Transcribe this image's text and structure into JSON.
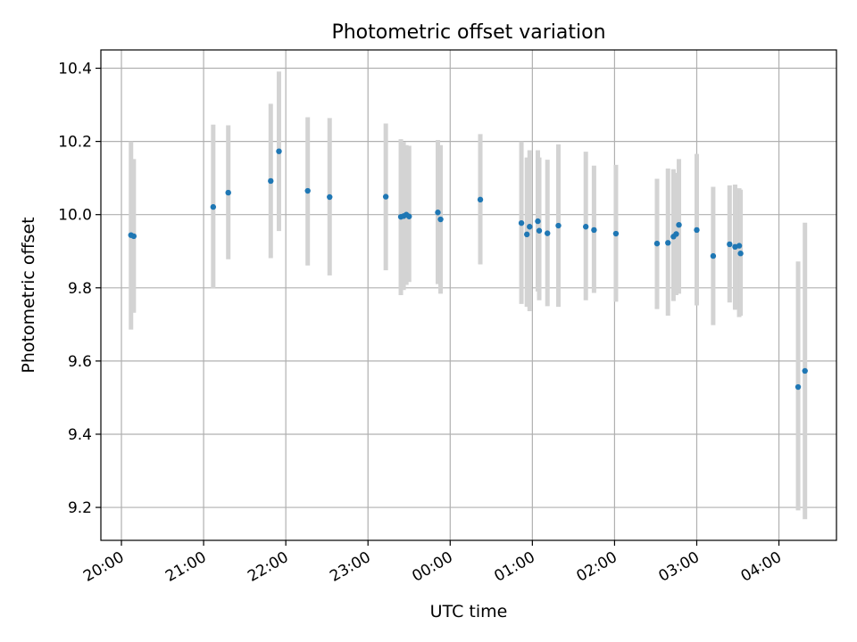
{
  "chart_data": {
    "type": "scatter",
    "title": "Photometric offset variation",
    "xlabel": "UTC time",
    "ylabel": "Photometric offset",
    "x_unit": "UTC time (evening into next day)",
    "x_ticks": [
      "20:00",
      "21:00",
      "22:00",
      "23:00",
      "00:00",
      "01:00",
      "02:00",
      "03:00",
      "04:00"
    ],
    "xlim": [
      "19:45",
      "04:42"
    ],
    "ylim": [
      9.11,
      10.45
    ],
    "y_ticks": [
      9.2,
      9.4,
      9.6,
      9.8,
      10.0,
      10.2,
      10.4
    ],
    "grid": true,
    "marker_color": "#1f77b4",
    "errorbar_color": "#d3d3d3",
    "points": [
      {
        "time": "20:07",
        "y": 9.944,
        "lo": 9.686,
        "hi": 10.2
      },
      {
        "time": "20:09",
        "y": 9.941,
        "lo": 9.732,
        "hi": 10.152
      },
      {
        "time": "21:07",
        "y": 10.021,
        "lo": 9.798,
        "hi": 10.246
      },
      {
        "time": "21:18",
        "y": 10.06,
        "lo": 9.878,
        "hi": 10.244
      },
      {
        "time": "21:49",
        "y": 10.092,
        "lo": 9.881,
        "hi": 10.303
      },
      {
        "time": "21:55",
        "y": 10.173,
        "lo": 9.955,
        "hi": 10.391
      },
      {
        "time": "22:16",
        "y": 10.065,
        "lo": 9.861,
        "hi": 10.266
      },
      {
        "time": "22:32",
        "y": 10.048,
        "lo": 9.834,
        "hi": 10.264
      },
      {
        "time": "23:13",
        "y": 10.049,
        "lo": 9.848,
        "hi": 10.249
      },
      {
        "time": "23:24",
        "y": 9.994,
        "lo": 9.78,
        "hi": 10.206
      },
      {
        "time": "23:26",
        "y": 9.996,
        "lo": 9.794,
        "hi": 10.198
      },
      {
        "time": "23:28",
        "y": 10.0,
        "lo": 9.808,
        "hi": 10.19
      },
      {
        "time": "23:30",
        "y": 9.995,
        "lo": 9.816,
        "hi": 10.188
      },
      {
        "time": "23:51",
        "y": 10.006,
        "lo": 9.81,
        "hi": 10.204
      },
      {
        "time": "23:53",
        "y": 9.987,
        "lo": 9.784,
        "hi": 10.19
      },
      {
        "time": "00:22",
        "y": 10.041,
        "lo": 9.864,
        "hi": 10.22
      },
      {
        "time": "00:52",
        "y": 9.977,
        "lo": 9.756,
        "hi": 10.2
      },
      {
        "time": "00:56",
        "y": 9.946,
        "lo": 9.748,
        "hi": 10.156
      },
      {
        "time": "00:58",
        "y": 9.967,
        "lo": 9.736,
        "hi": 10.176
      },
      {
        "time": "01:04",
        "y": 9.982,
        "lo": 9.79,
        "hi": 10.176
      },
      {
        "time": "01:05",
        "y": 9.956,
        "lo": 9.766,
        "hi": 10.156
      },
      {
        "time": "01:11",
        "y": 9.949,
        "lo": 9.75,
        "hi": 10.15
      },
      {
        "time": "01:19",
        "y": 9.97,
        "lo": 9.748,
        "hi": 10.192
      },
      {
        "time": "01:39",
        "y": 9.967,
        "lo": 9.766,
        "hi": 10.172
      },
      {
        "time": "01:45",
        "y": 9.958,
        "lo": 9.786,
        "hi": 10.134
      },
      {
        "time": "02:01",
        "y": 9.948,
        "lo": 9.762,
        "hi": 10.136
      },
      {
        "time": "02:31",
        "y": 9.921,
        "lo": 9.742,
        "hi": 10.098
      },
      {
        "time": "02:39",
        "y": 9.923,
        "lo": 9.724,
        "hi": 10.126
      },
      {
        "time": "02:43",
        "y": 9.94,
        "lo": 9.764,
        "hi": 10.124
      },
      {
        "time": "02:45",
        "y": 9.947,
        "lo": 9.78,
        "hi": 10.114
      },
      {
        "time": "02:47",
        "y": 9.972,
        "lo": 9.784,
        "hi": 10.152
      },
      {
        "time": "03:00",
        "y": 9.958,
        "lo": 9.752,
        "hi": 10.166
      },
      {
        "time": "03:12",
        "y": 9.887,
        "lo": 9.698,
        "hi": 10.076
      },
      {
        "time": "03:24",
        "y": 9.919,
        "lo": 9.76,
        "hi": 10.08
      },
      {
        "time": "03:28",
        "y": 9.912,
        "lo": 9.74,
        "hi": 10.082
      },
      {
        "time": "03:31",
        "y": 9.915,
        "lo": 9.72,
        "hi": 10.072
      },
      {
        "time": "03:32",
        "y": 9.894,
        "lo": 9.724,
        "hi": 10.068
      },
      {
        "time": "04:14",
        "y": 9.529,
        "lo": 9.192,
        "hi": 9.872
      },
      {
        "time": "04:19",
        "y": 9.573,
        "lo": 9.168,
        "hi": 9.978
      }
    ]
  }
}
